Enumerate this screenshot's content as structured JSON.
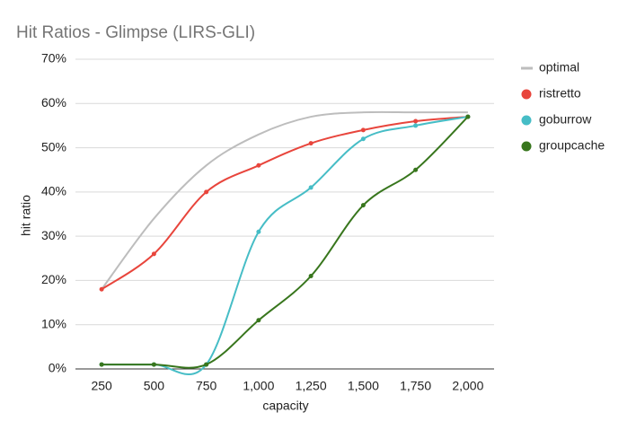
{
  "chart_data": {
    "type": "line",
    "title": "Hit Ratios - Glimpse (LIRS-GLI)",
    "x_label": "capacity",
    "y_label": "hit ratio",
    "categories": [
      "250",
      "500",
      "750",
      "1,000",
      "1,250",
      "1,500",
      "1,750",
      "2,000"
    ],
    "series": [
      {
        "name": "optimal",
        "color": "#bdbdbd",
        "markers": false,
        "values": [
          18,
          34,
          46,
          53,
          57,
          58,
          58,
          58
        ]
      },
      {
        "name": "ristretto",
        "color": "#e8453c",
        "markers": true,
        "values": [
          18,
          26,
          40,
          46,
          51,
          54,
          56,
          57
        ]
      },
      {
        "name": "goburrow",
        "color": "#46bdc6",
        "markers": true,
        "values": [
          1,
          1,
          1,
          31,
          41,
          52,
          55,
          57
        ]
      },
      {
        "name": "groupcache",
        "color": "#38761d",
        "markers": true,
        "values": [
          1,
          1,
          1,
          11,
          21,
          37,
          45,
          57
        ]
      }
    ],
    "ylim": [
      0,
      70
    ],
    "yticks": [
      {
        "value": 0,
        "label": "0%"
      },
      {
        "value": 10,
        "label": "10%"
      },
      {
        "value": 20,
        "label": "20%"
      },
      {
        "value": 30,
        "label": "30%"
      },
      {
        "value": 40,
        "label": "40%"
      },
      {
        "value": 50,
        "label": "50%"
      },
      {
        "value": 60,
        "label": "60%"
      },
      {
        "value": 70,
        "label": "70%"
      }
    ],
    "grid": true,
    "legend": "right"
  }
}
